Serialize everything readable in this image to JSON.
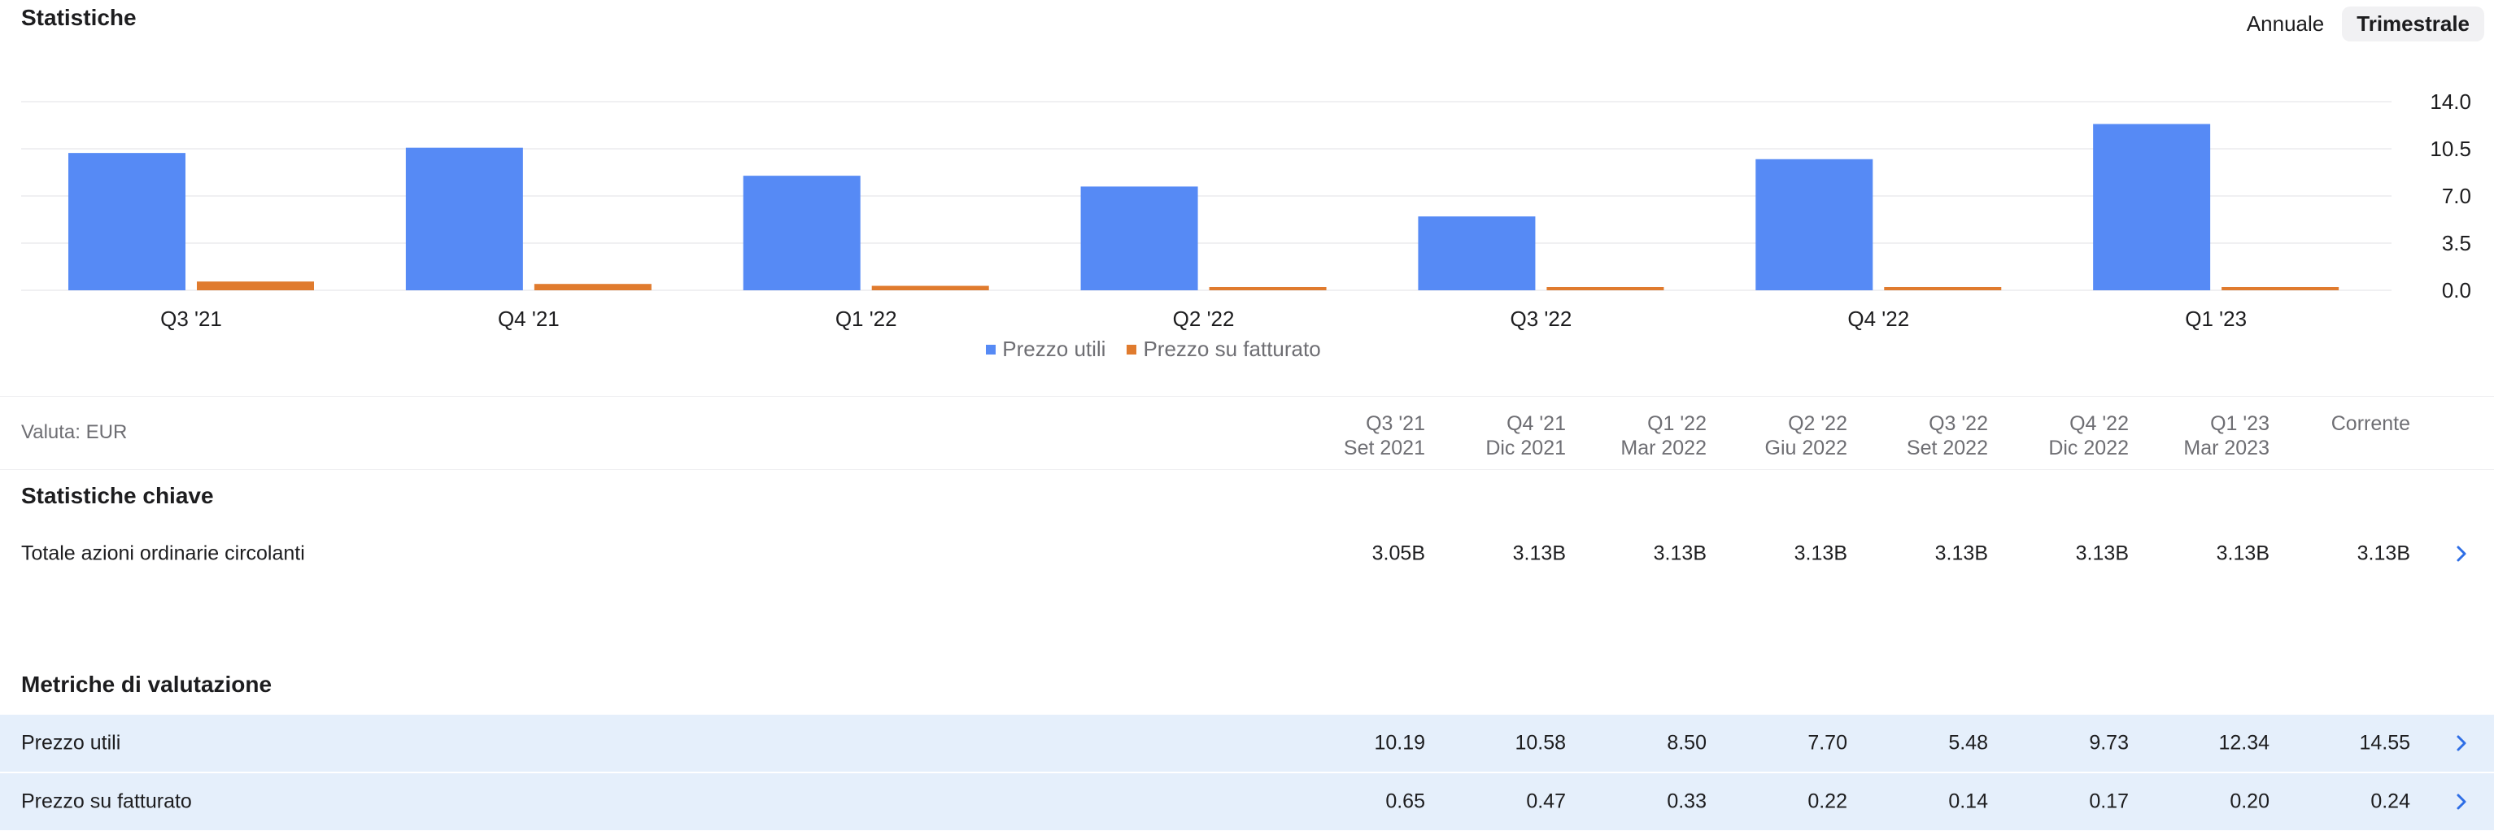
{
  "header": {
    "title": "Statistiche",
    "toggle": {
      "annual": "Annuale",
      "quarterly": "Trimestrale",
      "selected": "Trimestrale"
    }
  },
  "chart_data": {
    "type": "bar",
    "categories": [
      "Q3 '21",
      "Q4 '21",
      "Q1 '22",
      "Q2 '22",
      "Q3 '22",
      "Q4 '22",
      "Q1 '23"
    ],
    "series": [
      {
        "name": "Prezzo utili",
        "color": "#568af5",
        "values": [
          10.19,
          10.58,
          8.5,
          7.7,
          5.48,
          9.73,
          12.34
        ]
      },
      {
        "name": "Prezzo su fatturato",
        "color": "#e07b2e",
        "values": [
          0.65,
          0.47,
          0.33,
          0.22,
          0.14,
          0.17,
          0.2
        ]
      }
    ],
    "yticks": [
      "14.0",
      "10.5",
      "7.0",
      "3.5",
      "0.0"
    ],
    "ylim": [
      0,
      14
    ],
    "y_axis_side": "right",
    "grid": true,
    "legend_position": "bottom-center"
  },
  "table": {
    "currency_label": "Valuta: EUR",
    "columns": [
      {
        "period": "Q3 '21",
        "date": "Set 2021"
      },
      {
        "period": "Q4 '21",
        "date": "Dic 2021"
      },
      {
        "period": "Q1 '22",
        "date": "Mar 2022"
      },
      {
        "period": "Q2 '22",
        "date": "Giu 2022"
      },
      {
        "period": "Q3 '22",
        "date": "Set 2022"
      },
      {
        "period": "Q4 '22",
        "date": "Dic 2022"
      },
      {
        "period": "Q1 '23",
        "date": "Mar 2023"
      },
      {
        "period": "Corrente",
        "date": ""
      }
    ],
    "sections": [
      {
        "title": "Statistiche chiave",
        "rows": [
          {
            "label": "Totale azioni ordinarie circolanti",
            "values": [
              "3.05B",
              "3.13B",
              "3.13B",
              "3.13B",
              "3.13B",
              "3.13B",
              "3.13B",
              "3.13B"
            ],
            "highlight": false
          }
        ]
      },
      {
        "title": "Metriche di valutazione",
        "rows": [
          {
            "label": "Prezzo utili",
            "values": [
              "10.19",
              "10.58",
              "8.50",
              "7.70",
              "5.48",
              "9.73",
              "12.34",
              "14.55"
            ],
            "highlight": true
          },
          {
            "label": "Prezzo su fatturato",
            "values": [
              "0.65",
              "0.47",
              "0.33",
              "0.22",
              "0.14",
              "0.17",
              "0.20",
              "0.24"
            ],
            "highlight": true
          }
        ]
      }
    ]
  },
  "icons": {
    "row_action": "chevron-right-icon"
  },
  "colors": {
    "accent": "#2e6ee6",
    "highlight_row": "#e5effb"
  }
}
